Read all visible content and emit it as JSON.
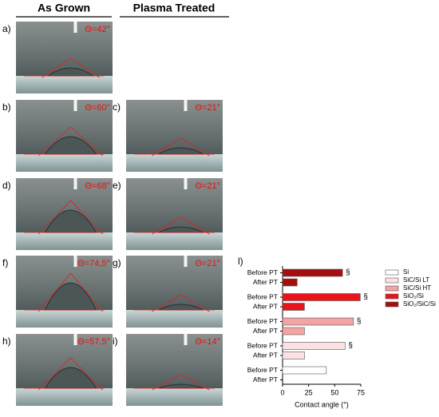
{
  "headers": [
    "As Grown",
    "Plasma Treated"
  ],
  "panels": [
    {
      "label": "a)",
      "angle": "Θ=42°"
    },
    {
      "label": "b)",
      "angle": "Θ=60°"
    },
    {
      "label": "c)",
      "angle": "Θ=21°"
    },
    {
      "label": "d)",
      "angle": "Θ=68°"
    },
    {
      "label": "e)",
      "angle": "Θ=21°"
    },
    {
      "label": "f)",
      "angle": "Θ=74,5°"
    },
    {
      "label": "g)",
      "angle": "Θ=21°"
    },
    {
      "label": "h)",
      "angle": "Θ=57,5°"
    },
    {
      "label": "i)",
      "angle": "Θ=14°"
    }
  ],
  "chart_data": {
    "type": "bar",
    "orientation": "horizontal",
    "panel_label": "l)",
    "categories": [
      "Before PT",
      "After PT"
    ],
    "series": [
      {
        "name": "Si",
        "color": "#ffffff",
        "values": [
          42,
          null
        ]
      },
      {
        "name": "SiC/Si LT",
        "color": "#fbe1e1",
        "values": [
          60,
          21
        ],
        "note": "§"
      },
      {
        "name": "SiC/Si HT",
        "color": "#f2a3a3",
        "values": [
          68,
          21
        ],
        "note": "§"
      },
      {
        "name": "SiO₂/Si",
        "color": "#e8141a",
        "values": [
          74.5,
          21
        ],
        "note": "§"
      },
      {
        "name": "SiO₂/SiC/Si",
        "color": "#a30f0f",
        "values": [
          57.5,
          14
        ],
        "note": "§"
      }
    ],
    "xlabel": "Contact angle (°)",
    "xlim": [
      0,
      75
    ],
    "xticks": [
      0,
      25,
      50,
      75
    ]
  }
}
